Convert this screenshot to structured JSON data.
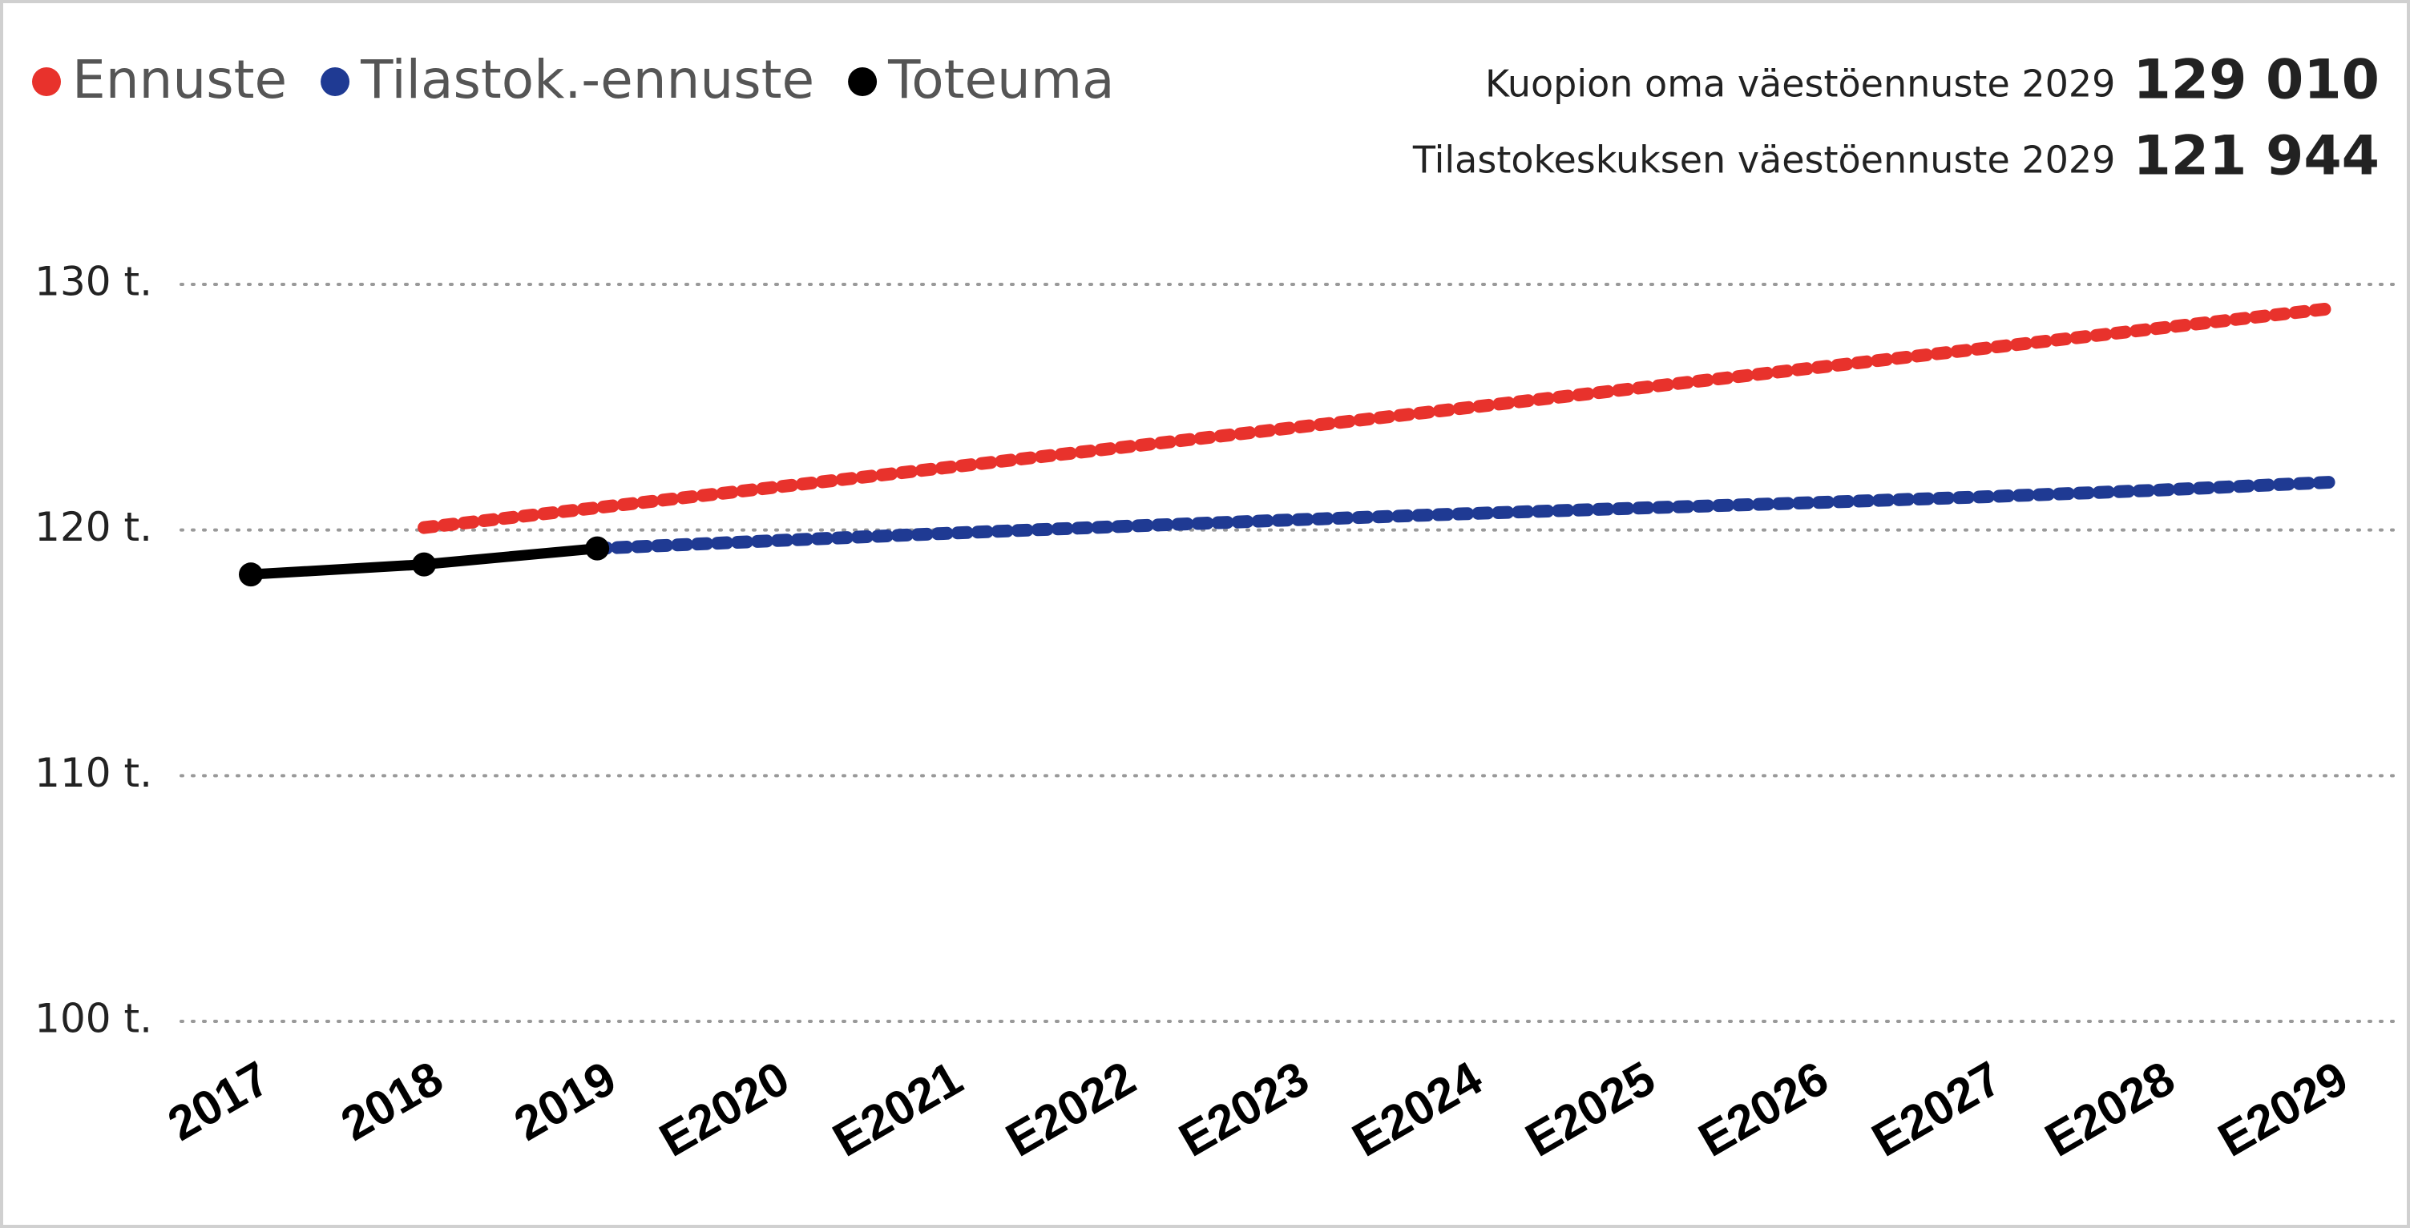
{
  "chart_data": {
    "type": "line",
    "categories": [
      "2017",
      "2018",
      "2019",
      "E2020",
      "E2021",
      "E2022",
      "E2023",
      "E2024",
      "E2025",
      "E2026",
      "E2027",
      "E2028",
      "E2029"
    ],
    "series": [
      {
        "name": "Ennuste",
        "color": "#e8322c",
        "style": "dotted",
        "values": [
          null,
          120100,
          120910,
          121720,
          122530,
          123340,
          124150,
          124960,
          125770,
          126580,
          127390,
          128200,
          129010
        ]
      },
      {
        "name": "Tilastok.-ennuste",
        "color": "#1f3a93",
        "style": "dotted",
        "values": [
          null,
          null,
          119250,
          119560,
          119860,
          120140,
          120410,
          120660,
          120890,
          121110,
          121350,
          121620,
          121944
        ]
      },
      {
        "name": "Toteuma",
        "color": "#000000",
        "style": "solid",
        "markers": true,
        "values": [
          118190,
          118600,
          119250,
          null,
          null,
          null,
          null,
          null,
          null,
          null,
          null,
          null,
          null
        ]
      }
    ],
    "ylim": [
      100000,
      130000
    ],
    "yticks": [
      {
        "value": 100000,
        "label": "100 t."
      },
      {
        "value": 110000,
        "label": "110 t."
      },
      {
        "value": 120000,
        "label": "120 t."
      },
      {
        "value": 130000,
        "label": "130 t."
      }
    ],
    "grid": true,
    "legend": "top-left",
    "annotations": [
      {
        "label": "Kuopion oma väestöennuste 2029",
        "value": "129 010"
      },
      {
        "label": "Tilastokeskuksen väestöennuste 2029",
        "value": "121 944"
      }
    ]
  }
}
